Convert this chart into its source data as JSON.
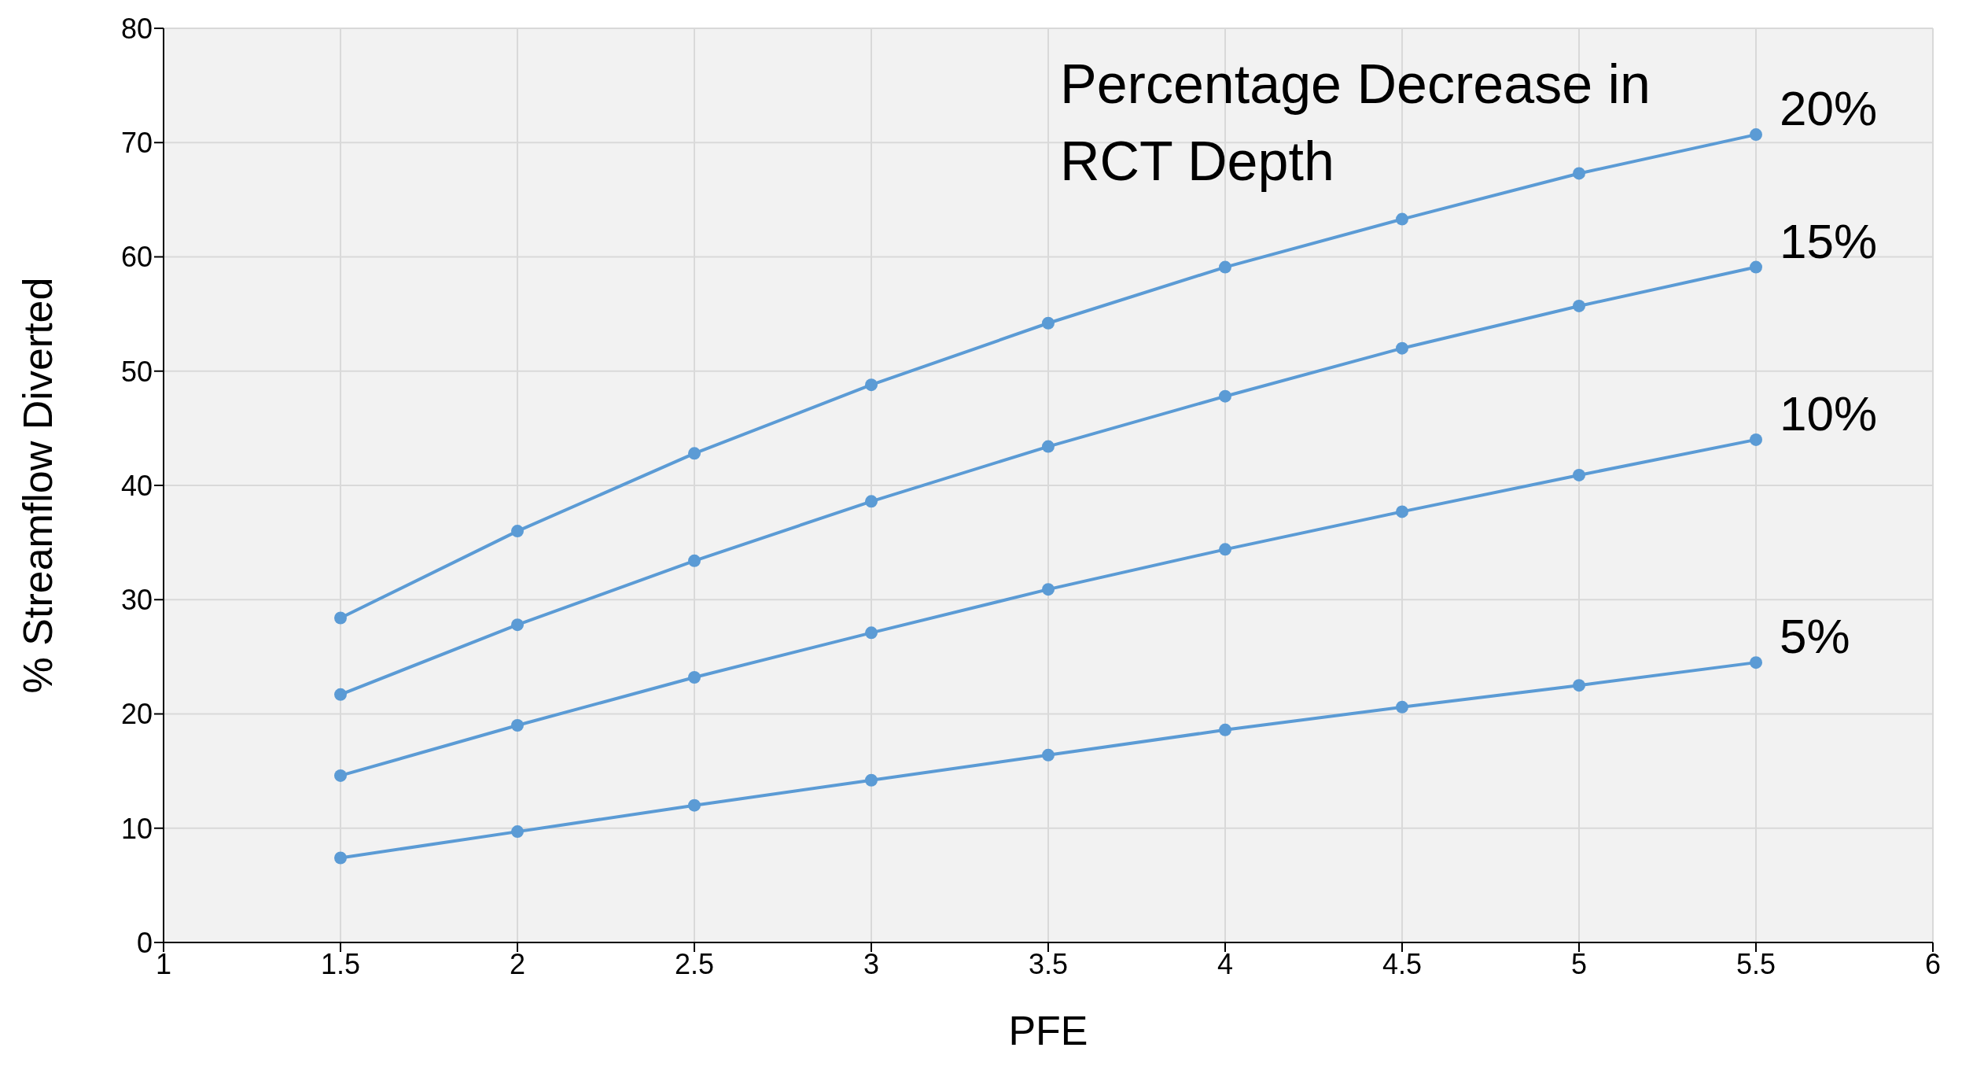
{
  "chart_data": {
    "type": "line",
    "xlabel": "PFE",
    "ylabel": "% Streamflow Diverted",
    "legend_title": "Percentage Decrease in RCT Depth",
    "x": [
      1.5,
      2,
      2.5,
      3,
      3.5,
      4,
      4.5,
      5,
      5.5
    ],
    "series": [
      {
        "name": "20%",
        "color": "#5b9bd5",
        "values": [
          28.4,
          36.0,
          42.8,
          48.8,
          54.2,
          59.1,
          63.3,
          67.3,
          70.7
        ]
      },
      {
        "name": "15%",
        "color": "#5b9bd5",
        "values": [
          21.7,
          27.8,
          33.4,
          38.6,
          43.4,
          47.8,
          52.0,
          55.7,
          59.1
        ]
      },
      {
        "name": "10%",
        "color": "#5b9bd5",
        "values": [
          14.6,
          19.0,
          23.2,
          27.1,
          30.9,
          34.4,
          37.7,
          40.9,
          44.0
        ]
      },
      {
        "name": "5%",
        "color": "#5b9bd5",
        "values": [
          7.4,
          9.7,
          12.0,
          14.2,
          16.4,
          18.6,
          20.6,
          22.5,
          24.5
        ]
      }
    ],
    "xlim": [
      1,
      6
    ],
    "xticks": [
      1,
      1.5,
      2,
      2.5,
      3,
      3.5,
      4,
      4.5,
      5,
      5.5,
      6
    ],
    "ylim": [
      0,
      80
    ],
    "yticks": [
      0,
      10,
      20,
      30,
      40,
      50,
      60,
      70,
      80
    ],
    "grid": true,
    "marker": "circle",
    "line_style": "solid",
    "legend": false
  }
}
